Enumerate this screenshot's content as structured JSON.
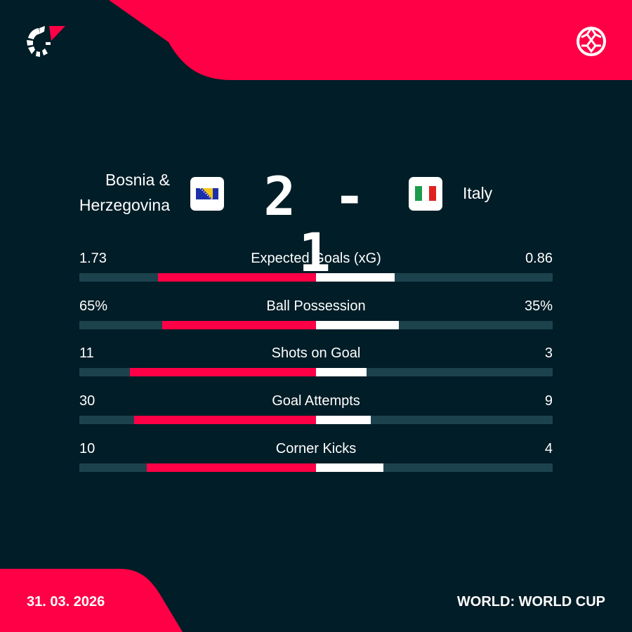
{
  "colors": {
    "background": "#011d27",
    "accent": "#ff0046",
    "home_bar": "#ff0046",
    "away_bar": "#ffffff",
    "track": "#1c434d"
  },
  "header": {
    "logo_icon": "flashscore-logo",
    "sport_icon": "football-icon"
  },
  "match": {
    "home_team": "Bosnia & Herzegovina",
    "home_line1": "Bosnia &",
    "home_line2": "Herzegovina",
    "away_team": "Italy",
    "score": "2 - 1",
    "home_flag": "bosnia-flag",
    "away_flag": "italy-flag"
  },
  "stats": [
    {
      "name": "Expected Goals (xG)",
      "home": "1.73",
      "away": "0.86",
      "home_value": 1.73,
      "away_value": 0.86
    },
    {
      "name": "Ball Possession",
      "home": "65%",
      "away": "35%",
      "home_value": 65,
      "away_value": 35
    },
    {
      "name": "Shots on Goal",
      "home": "11",
      "away": "3",
      "home_value": 11,
      "away_value": 3
    },
    {
      "name": "Goal Attempts",
      "home": "30",
      "away": "9",
      "home_value": 30,
      "away_value": 9
    },
    {
      "name": "Corner Kicks",
      "home": "10",
      "away": "4",
      "home_value": 10,
      "away_value": 4
    }
  ],
  "footer": {
    "date": "31. 03. 2026",
    "competition": "WORLD: WORLD CUP"
  }
}
